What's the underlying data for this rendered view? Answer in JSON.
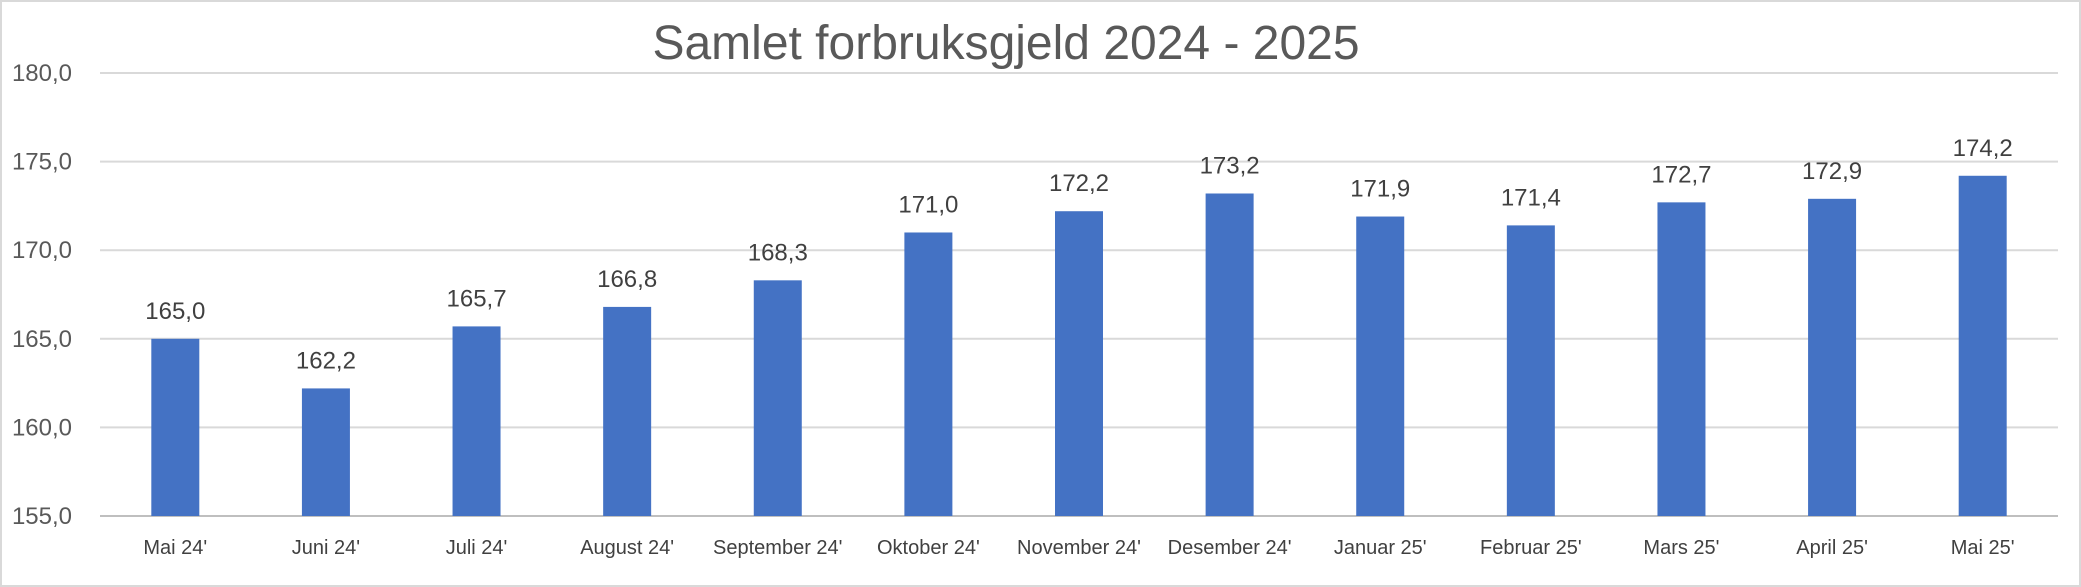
{
  "chart_data": {
    "type": "bar",
    "title": "Samlet forbruksgjeld 2024 - 2025",
    "xlabel": "",
    "ylabel": "",
    "ylim": [
      155,
      180
    ],
    "yticks": [
      "155,0",
      "160,0",
      "165,0",
      "170,0",
      "175,0",
      "180,0"
    ],
    "ytick_values": [
      155,
      160,
      165,
      170,
      175,
      180
    ],
    "categories": [
      "Mai 24'",
      "Juni 24'",
      "Juli 24'",
      "August 24'",
      "September 24'",
      "Oktober 24'",
      "November 24'",
      "Desember 24'",
      "Januar 25'",
      "Februar 25'",
      "Mars 25'",
      "April 25'",
      "Mai 25'"
    ],
    "values": [
      165.0,
      162.2,
      165.7,
      166.8,
      168.3,
      171.0,
      172.2,
      173.2,
      171.9,
      171.4,
      172.7,
      172.9,
      174.2
    ],
    "data_labels": [
      "165,0",
      "162,2",
      "165,7",
      "166,8",
      "168,3",
      "171,0",
      "172,2",
      "173,2",
      "171,9",
      "171,4",
      "172,7",
      "172,9",
      "174,2"
    ],
    "grid": true,
    "legend": "none",
    "bar_color": "#4472C4"
  }
}
